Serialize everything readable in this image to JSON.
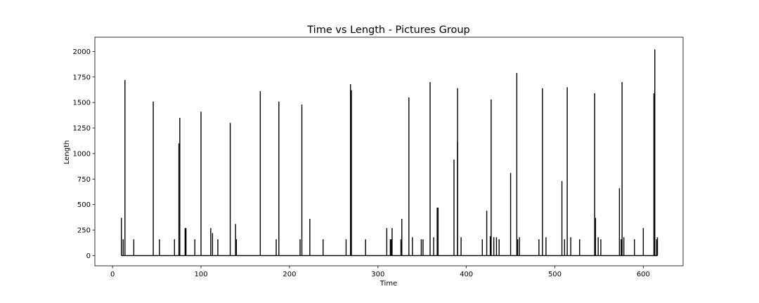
{
  "chart_data": {
    "type": "line",
    "title": "Time vs Length - Pictures Group",
    "xlabel": "Time",
    "ylabel": "Length",
    "xlim": [
      -20,
      645
    ],
    "ylim": [
      -100,
      2140
    ],
    "x_ticks": [
      0,
      100,
      200,
      300,
      400,
      500,
      600
    ],
    "y_ticks": [
      0,
      250,
      500,
      750,
      1000,
      1250,
      1500,
      1750,
      2000
    ],
    "grid": false,
    "legend": "none",
    "series_color": "#000000",
    "x_range": [
      10,
      616
    ],
    "spikes": [
      [
        10,
        370
      ],
      [
        12,
        160
      ],
      [
        14,
        1720
      ],
      [
        24,
        160
      ],
      [
        46,
        1510
      ],
      [
        53,
        160
      ],
      [
        70,
        160
      ],
      [
        75,
        1100
      ],
      [
        76,
        1350
      ],
      [
        82,
        270
      ],
      [
        83,
        270
      ],
      [
        93,
        160
      ],
      [
        100,
        1410
      ],
      [
        111,
        270
      ],
      [
        113,
        220
      ],
      [
        119,
        160
      ],
      [
        133,
        1300
      ],
      [
        139,
        310
      ],
      [
        140,
        160
      ],
      [
        167,
        1610
      ],
      [
        185,
        160
      ],
      [
        188,
        1510
      ],
      [
        212,
        160
      ],
      [
        214,
        1480
      ],
      [
        223,
        360
      ],
      [
        238,
        160
      ],
      [
        264,
        160
      ],
      [
        269,
        1680
      ],
      [
        270,
        1620
      ],
      [
        286,
        160
      ],
      [
        310,
        270
      ],
      [
        314,
        160
      ],
      [
        315,
        160
      ],
      [
        316,
        270
      ],
      [
        326,
        160
      ],
      [
        327,
        360
      ],
      [
        335,
        1550
      ],
      [
        339,
        180
      ],
      [
        349,
        160
      ],
      [
        351,
        160
      ],
      [
        359,
        1700
      ],
      [
        363,
        180
      ],
      [
        367,
        470
      ],
      [
        368,
        470
      ],
      [
        386,
        940
      ],
      [
        390,
        1640
      ],
      [
        390,
        1110
      ],
      [
        394,
        180
      ],
      [
        418,
        160
      ],
      [
        423,
        440
      ],
      [
        427,
        190
      ],
      [
        428,
        1530
      ],
      [
        431,
        180
      ],
      [
        434,
        180
      ],
      [
        437,
        160
      ],
      [
        450,
        810
      ],
      [
        457,
        1790
      ],
      [
        458,
        160
      ],
      [
        460,
        180
      ],
      [
        482,
        160
      ],
      [
        486,
        1640
      ],
      [
        490,
        180
      ],
      [
        508,
        730
      ],
      [
        511,
        160
      ],
      [
        514,
        1650
      ],
      [
        518,
        180
      ],
      [
        528,
        160
      ],
      [
        545,
        1590
      ],
      [
        546,
        370
      ],
      [
        549,
        180
      ],
      [
        552,
        160
      ],
      [
        573,
        660
      ],
      [
        575,
        160
      ],
      [
        576,
        1700
      ],
      [
        578,
        180
      ],
      [
        590,
        160
      ],
      [
        600,
        270
      ],
      [
        612,
        1590
      ],
      [
        613,
        2020
      ],
      [
        615,
        160
      ],
      [
        616,
        180
      ]
    ]
  }
}
